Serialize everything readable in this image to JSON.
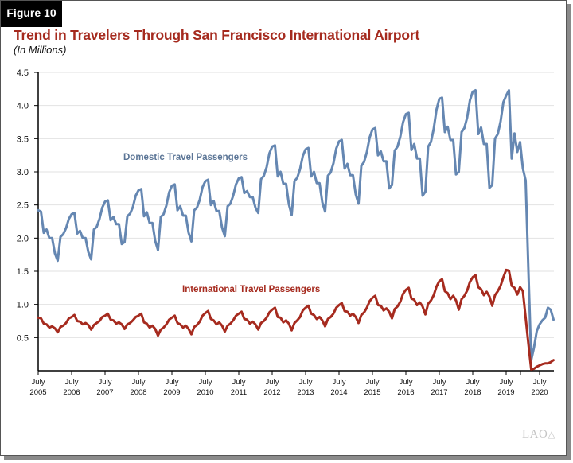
{
  "figure_label": "Figure 10",
  "logo_text": "LAO",
  "colors": {
    "domestic": "#6587b2",
    "international": "#a62b1f",
    "title": "#a52a1e",
    "domestic_label": "#5b7596"
  },
  "chart_data": {
    "type": "line",
    "title": "Trend in Travelers Through San Francisco International Airport",
    "subtitle": "(In Millions)",
    "xlabel": "",
    "ylabel": "",
    "ylim": [
      0,
      4.5
    ],
    "yticks": [
      "4.5",
      "4.0",
      "3.5",
      "3.0",
      "2.5",
      "2.0",
      "1.5",
      "1.0",
      "0.5"
    ],
    "ytick_values": [
      4.5,
      4.0,
      3.5,
      3.0,
      2.5,
      2.0,
      1.5,
      1.0,
      0.5
    ],
    "grid": "horizontal",
    "xticks": [
      {
        "month": "July",
        "year": "2005"
      },
      {
        "month": "July",
        "year": "2006"
      },
      {
        "month": "July",
        "year": "2007"
      },
      {
        "month": "July",
        "year": "2008"
      },
      {
        "month": "July",
        "year": "2009"
      },
      {
        "month": "July",
        "year": "2010"
      },
      {
        "month": "July",
        "year": "2011"
      },
      {
        "month": "July",
        "year": "2012"
      },
      {
        "month": "July",
        "year": "2013"
      },
      {
        "month": "July",
        "year": "2014"
      },
      {
        "month": "July",
        "year": "2015"
      },
      {
        "month": "July",
        "year": "2016"
      },
      {
        "month": "July",
        "year": "2017"
      },
      {
        "month": "July",
        "year": "2018"
      },
      {
        "month": "July",
        "year": "2019"
      },
      {
        "month": "July",
        "year": "2020"
      }
    ],
    "x_frequency": "monthly",
    "x_range": [
      "July 2005",
      "December 2020"
    ],
    "series": [
      {
        "name": "Domestic Travel Passengers",
        "values": [
          2.42,
          2.4,
          2.08,
          2.13,
          2.0,
          2.0,
          1.77,
          1.66,
          2.02,
          2.06,
          2.15,
          2.29,
          2.36,
          2.38,
          2.07,
          2.11,
          2.0,
          2.0,
          1.79,
          1.68,
          2.13,
          2.17,
          2.29,
          2.46,
          2.55,
          2.57,
          2.27,
          2.32,
          2.21,
          2.21,
          1.91,
          1.94,
          2.33,
          2.37,
          2.47,
          2.64,
          2.72,
          2.74,
          2.33,
          2.39,
          2.23,
          2.23,
          1.96,
          1.82,
          2.32,
          2.36,
          2.49,
          2.69,
          2.79,
          2.81,
          2.42,
          2.48,
          2.34,
          2.34,
          2.08,
          1.95,
          2.42,
          2.46,
          2.58,
          2.77,
          2.86,
          2.88,
          2.5,
          2.56,
          2.41,
          2.41,
          2.16,
          2.03,
          2.48,
          2.52,
          2.64,
          2.81,
          2.9,
          2.92,
          2.68,
          2.71,
          2.62,
          2.62,
          2.46,
          2.38,
          2.89,
          2.94,
          3.07,
          3.28,
          3.38,
          3.4,
          2.93,
          3.0,
          2.82,
          2.82,
          2.51,
          2.35,
          2.86,
          2.91,
          3.04,
          3.24,
          3.34,
          3.36,
          2.93,
          3.0,
          2.83,
          2.83,
          2.54,
          2.4,
          2.94,
          2.99,
          3.13,
          3.35,
          3.46,
          3.48,
          3.05,
          3.12,
          2.95,
          2.95,
          2.66,
          2.52,
          3.09,
          3.15,
          3.3,
          3.52,
          3.64,
          3.66,
          3.25,
          3.31,
          3.16,
          3.16,
          2.75,
          2.8,
          3.32,
          3.38,
          3.53,
          3.75,
          3.87,
          3.89,
          3.33,
          3.42,
          3.2,
          3.2,
          2.64,
          2.7,
          3.38,
          3.45,
          3.65,
          3.94,
          4.1,
          4.12,
          3.6,
          3.68,
          3.48,
          3.48,
          2.96,
          3.0,
          3.6,
          3.66,
          3.82,
          4.08,
          4.21,
          4.23,
          3.57,
          3.67,
          3.42,
          3.42,
          2.76,
          2.8,
          3.5,
          3.57,
          3.76,
          4.05,
          4.15,
          4.23,
          3.2,
          3.58,
          3.3,
          3.45,
          3.05,
          2.87,
          1.5,
          0.16,
          0.35,
          0.6,
          0.7,
          0.76,
          0.8,
          0.95,
          0.92,
          0.77
        ]
      },
      {
        "name": "International Travel Passengers",
        "values": [
          0.8,
          0.79,
          0.71,
          0.7,
          0.65,
          0.67,
          0.64,
          0.58,
          0.66,
          0.68,
          0.72,
          0.79,
          0.81,
          0.84,
          0.75,
          0.74,
          0.7,
          0.72,
          0.69,
          0.62,
          0.69,
          0.72,
          0.75,
          0.81,
          0.83,
          0.86,
          0.77,
          0.76,
          0.71,
          0.73,
          0.7,
          0.63,
          0.7,
          0.72,
          0.76,
          0.81,
          0.83,
          0.86,
          0.73,
          0.71,
          0.65,
          0.68,
          0.63,
          0.53,
          0.62,
          0.65,
          0.7,
          0.77,
          0.8,
          0.83,
          0.72,
          0.7,
          0.65,
          0.68,
          0.63,
          0.55,
          0.66,
          0.69,
          0.74,
          0.83,
          0.87,
          0.9,
          0.78,
          0.76,
          0.7,
          0.73,
          0.68,
          0.59,
          0.68,
          0.71,
          0.76,
          0.83,
          0.86,
          0.89,
          0.78,
          0.77,
          0.71,
          0.74,
          0.7,
          0.62,
          0.72,
          0.75,
          0.8,
          0.88,
          0.92,
          0.95,
          0.81,
          0.8,
          0.73,
          0.76,
          0.71,
          0.61,
          0.72,
          0.76,
          0.81,
          0.91,
          0.95,
          0.98,
          0.86,
          0.84,
          0.78,
          0.81,
          0.76,
          0.67,
          0.78,
          0.81,
          0.86,
          0.95,
          0.99,
          1.02,
          0.9,
          0.89,
          0.83,
          0.86,
          0.81,
          0.72,
          0.84,
          0.88,
          0.95,
          1.05,
          1.1,
          1.13,
          0.99,
          0.98,
          0.91,
          0.94,
          0.89,
          0.79,
          0.93,
          0.97,
          1.04,
          1.16,
          1.22,
          1.25,
          1.09,
          1.07,
          0.99,
          1.03,
          0.97,
          0.85,
          1.01,
          1.06,
          1.14,
          1.27,
          1.35,
          1.38,
          1.2,
          1.17,
          1.08,
          1.13,
          1.06,
          0.92,
          1.08,
          1.13,
          1.21,
          1.34,
          1.41,
          1.44,
          1.26,
          1.23,
          1.14,
          1.19,
          1.12,
          0.98,
          1.14,
          1.2,
          1.28,
          1.41,
          1.52,
          1.51,
          1.28,
          1.25,
          1.15,
          1.26,
          1.2,
          0.8,
          0.4,
          0.02,
          0.03,
          0.06,
          0.08,
          0.1,
          0.11,
          0.11,
          0.13,
          0.16
        ]
      }
    ],
    "annotations": [
      "Domestic Travel Passengers",
      "International Travel Passengers"
    ],
    "legend": "inline labels"
  }
}
